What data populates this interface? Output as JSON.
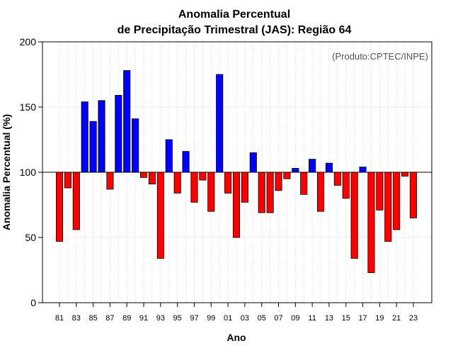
{
  "chart_data": {
    "type": "bar",
    "title": "Anomalia Percentual",
    "subtitle": "de Precipitação Trimestral (JAS): Região 64",
    "source_note": "(Produto:CPTEC/INPE)",
    "xlabel": "Ano",
    "ylabel": "Anomalia Percentual (%)",
    "ylim": [
      0,
      200
    ],
    "yticks": [
      0,
      50,
      100,
      150,
      200
    ],
    "baseline": 100,
    "grid": true,
    "colors": {
      "above": "#0000ff",
      "below": "#ff0000",
      "edge": "#000000",
      "grid": "#d3d3d3"
    },
    "categories": [
      "81",
      "82",
      "83",
      "84",
      "85",
      "86",
      "87",
      "88",
      "89",
      "90",
      "91",
      "92",
      "93",
      "94",
      "95",
      "96",
      "97",
      "98",
      "99",
      "00",
      "01",
      "02",
      "03",
      "04",
      "05",
      "06",
      "07",
      "08",
      "09",
      "10",
      "11",
      "12",
      "13",
      "14",
      "15",
      "16",
      "17",
      "18",
      "19",
      "20",
      "21",
      "22",
      "23"
    ],
    "tick_labels": [
      "81",
      "83",
      "85",
      "87",
      "89",
      "91",
      "93",
      "95",
      "97",
      "99",
      "01",
      "03",
      "05",
      "07",
      "09",
      "11",
      "13",
      "15",
      "17",
      "19",
      "21",
      "23"
    ],
    "values": [
      47,
      88,
      56,
      154,
      139,
      155,
      87,
      159,
      178,
      141,
      96,
      91,
      34,
      125,
      84,
      116,
      77,
      94,
      70,
      175,
      84,
      50,
      77,
      115,
      69,
      69,
      86,
      95,
      103,
      83,
      110,
      70,
      107,
      90,
      80,
      34,
      104,
      23,
      71,
      47,
      56,
      97,
      65
    ]
  }
}
